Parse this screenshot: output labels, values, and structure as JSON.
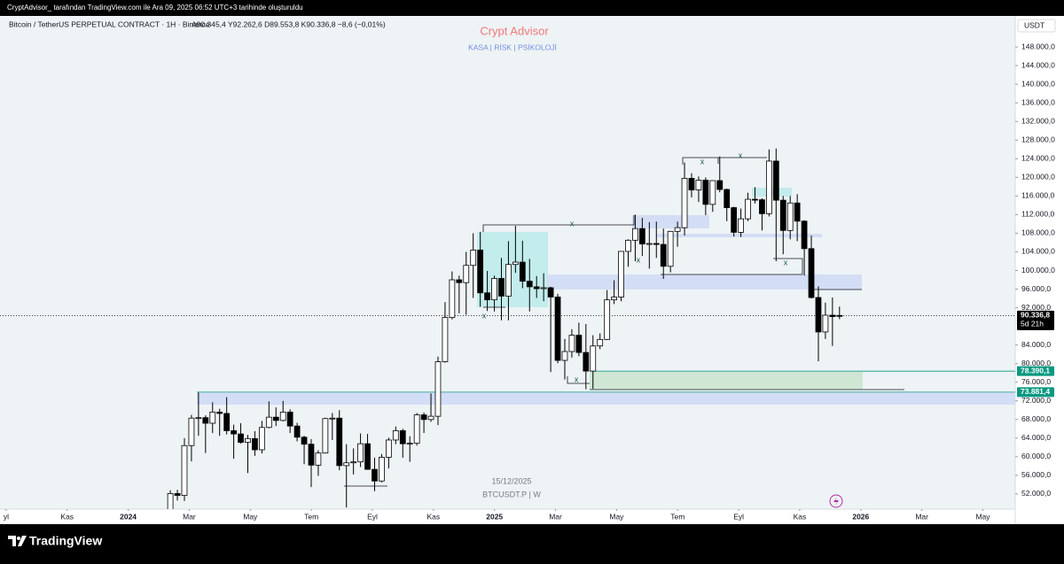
{
  "header": {
    "creator": "CryptAdvisor_ tarafından TradingView.com ile Ara 09, 2025 06:52 UTC+3 tarihinde oluşturuldu",
    "symbol": "Bitcoin / TetherUS PERPETUAL CONTRACT · 1H · Binance",
    "ohlc": "A90.345,4  Y92.262,6  D89.553,8  K90.336,8  −8,6 (−0,01%)",
    "currency": "USDT"
  },
  "watermark": {
    "title": "Crypt Advisor",
    "subtitle": "KASA  |  RİSK  |  PSİKOLOJİ"
  },
  "footer": {
    "date": "15/12/2025",
    "ticker": "BTCUSDT.P | W",
    "brand": "TradingView"
  },
  "chart_data": {
    "type": "candlestick",
    "up_color": "#ffffff",
    "down_color": "#000000",
    "ohlc": [
      [
        48300,
        52800,
        47700,
        52100
      ],
      [
        52100,
        52900,
        50600,
        51700
      ],
      [
        51700,
        64000,
        50500,
        62400
      ],
      [
        62400,
        69000,
        59000,
        68300
      ],
      [
        68300,
        73800,
        64500,
        68400
      ],
      [
        68400,
        68900,
        60800,
        67200
      ],
      [
        67200,
        71700,
        65100,
        69600
      ],
      [
        69600,
        70300,
        64500,
        69300
      ],
      [
        69300,
        72800,
        64800,
        65600
      ],
      [
        65600,
        66900,
        59600,
        64900
      ],
      [
        64900,
        67200,
        62800,
        63100
      ],
      [
        63100,
        64700,
        56500,
        63900
      ],
      [
        63900,
        65500,
        60200,
        61500
      ],
      [
        61500,
        67700,
        60700,
        66300
      ],
      [
        66300,
        71900,
        66100,
        68500
      ],
      [
        68500,
        70600,
        66600,
        67800
      ],
      [
        67800,
        72000,
        67600,
        69600
      ],
      [
        69600,
        70200,
        65100,
        66600
      ],
      [
        66600,
        67300,
        63300,
        64200
      ],
      [
        64200,
        64500,
        58400,
        62700
      ],
      [
        62700,
        63800,
        53500,
        58200
      ],
      [
        58200,
        61400,
        55900,
        60800
      ],
      [
        60800,
        68400,
        60700,
        68200
      ],
      [
        68200,
        69400,
        63600,
        68300
      ],
      [
        68300,
        70000,
        57100,
        58100
      ],
      [
        58100,
        62700,
        49100,
        58700
      ],
      [
        58700,
        61800,
        56200,
        58900
      ],
      [
        58900,
        65000,
        57800,
        62800
      ],
      [
        62800,
        64900,
        57200,
        57300
      ],
      [
        57300,
        59800,
        52600,
        54800
      ],
      [
        54800,
        60600,
        54500,
        59900
      ],
      [
        59900,
        64100,
        57500,
        63600
      ],
      [
        63600,
        66500,
        62700,
        65600
      ],
      [
        65600,
        66000,
        59800,
        62800
      ],
      [
        62800,
        64400,
        58900,
        62900
      ],
      [
        62900,
        69400,
        62400,
        69000
      ],
      [
        69000,
        69500,
        65100,
        68000
      ],
      [
        68000,
        73600,
        67500,
        68700
      ],
      [
        68700,
        81500,
        66800,
        80400
      ],
      [
        80400,
        93200,
        80200,
        89900
      ],
      [
        89900,
        99800,
        89500,
        98000
      ],
      [
        98000,
        98900,
        90800,
        97400
      ],
      [
        97400,
        104000,
        90500,
        101100
      ],
      [
        101100,
        108000,
        94100,
        104400
      ],
      [
        104400,
        108300,
        92200,
        95200
      ],
      [
        95200,
        99900,
        91300,
        93700
      ],
      [
        93700,
        98900,
        91200,
        98300
      ],
      [
        98300,
        102700,
        89300,
        94500
      ],
      [
        94500,
        106300,
        89300,
        101300
      ],
      [
        101300,
        109600,
        99500,
        101800
      ],
      [
        101800,
        106400,
        96200,
        97700
      ],
      [
        97700,
        102500,
        91200,
        96500
      ],
      [
        96500,
        98800,
        94100,
        96100
      ],
      [
        96100,
        99400,
        93400,
        96300
      ],
      [
        96300,
        96500,
        78200,
        94300
      ],
      [
        94300,
        95000,
        80100,
        80700
      ],
      [
        80700,
        85300,
        76600,
        82600
      ],
      [
        82600,
        87400,
        81300,
        86100
      ],
      [
        86100,
        88800,
        81600,
        82400
      ],
      [
        82400,
        88500,
        74500,
        78400
      ],
      [
        78400,
        86100,
        74600,
        83800
      ],
      [
        83800,
        86500,
        83100,
        85200
      ],
      [
        85200,
        95800,
        85100,
        93700
      ],
      [
        93700,
        97900,
        92800,
        94300
      ],
      [
        94300,
        104100,
        93400,
        104100
      ],
      [
        104100,
        106700,
        100800,
        106500
      ],
      [
        106500,
        112000,
        102000,
        109000
      ],
      [
        109000,
        111300,
        103100,
        105700
      ],
      [
        105700,
        110400,
        100400,
        105800
      ],
      [
        105800,
        110500,
        102700,
        105600
      ],
      [
        105600,
        109000,
        98200,
        100900
      ],
      [
        100900,
        108500,
        99600,
        108400
      ],
      [
        108400,
        110500,
        105100,
        109200
      ],
      [
        109200,
        123200,
        107500,
        119800
      ],
      [
        119800,
        120900,
        115700,
        117300
      ],
      [
        117300,
        120200,
        114700,
        119400
      ],
      [
        119400,
        120000,
        111900,
        114200
      ],
      [
        114200,
        119300,
        112600,
        119300
      ],
      [
        119300,
        124500,
        116800,
        117400
      ],
      [
        117400,
        117600,
        110600,
        113500
      ],
      [
        113500,
        113700,
        107300,
        108200
      ],
      [
        108200,
        113300,
        107200,
        111100
      ],
      [
        111100,
        116700,
        110600,
        115300
      ],
      [
        115300,
        117900,
        114400,
        115200
      ],
      [
        115200,
        115500,
        108600,
        112200
      ],
      [
        112200,
        126000,
        111600,
        123500
      ],
      [
        123500,
        126200,
        102000,
        115100
      ],
      [
        115100,
        116000,
        103500,
        108600
      ],
      [
        108600,
        116000,
        106700,
        114500
      ],
      [
        114500,
        116400,
        106300,
        110600
      ],
      [
        110600,
        110800,
        98900,
        104700
      ],
      [
        104700,
        107500,
        94000,
        94200
      ],
      [
        94200,
        96600,
        80500,
        86800
      ],
      [
        86800,
        93100,
        85300,
        90400
      ],
      [
        90400,
        94200,
        83800,
        90100
      ],
      [
        90345.4,
        92262.6,
        89553.8,
        90336.8
      ]
    ],
    "ylim": [
      48760,
      154670
    ],
    "yticks": [
      {
        "value": 52000,
        "label": "52.000,0"
      },
      {
        "value": 56000,
        "label": "56.000,0"
      },
      {
        "value": 60000,
        "label": "60.000,0"
      },
      {
        "value": 64000,
        "label": "64.000,0"
      },
      {
        "value": 68000,
        "label": "68.000,0"
      },
      {
        "value": 72000,
        "label": "72.000,0"
      },
      {
        "value": 76000,
        "label": "76.000,0"
      },
      {
        "value": 80000,
        "label": "80.000,0"
      },
      {
        "value": 84000,
        "label": "84.000,0"
      },
      {
        "value": 92000,
        "label": "92.000,0"
      },
      {
        "value": 96000,
        "label": "96.000,0"
      },
      {
        "value": 100000,
        "label": "100.000,0"
      },
      {
        "value": 104000,
        "label": "104.000,0"
      },
      {
        "value": 108000,
        "label": "108.000,0"
      },
      {
        "value": 112000,
        "label": "112.000,0"
      },
      {
        "value": 116000,
        "label": "116.000,0"
      },
      {
        "value": 120000,
        "label": "120.000,0"
      },
      {
        "value": 124000,
        "label": "124.000,0"
      },
      {
        "value": 128000,
        "label": "128.000,0"
      },
      {
        "value": 132000,
        "label": "132.000,0"
      },
      {
        "value": 136000,
        "label": "136.000,0"
      },
      {
        "value": 140000,
        "label": "140.000,0"
      },
      {
        "value": 144000,
        "label": "144.000,0"
      },
      {
        "value": 148000,
        "label": "148.000,0"
      }
    ],
    "xlim": [
      -0.2,
      33.06
    ],
    "xticks": [
      {
        "value": 0,
        "label": "yl"
      },
      {
        "value": 2,
        "label": "Kas"
      },
      {
        "value": 4,
        "label": "2024"
      },
      {
        "value": 6,
        "label": "Mar"
      },
      {
        "value": 8,
        "label": "May"
      },
      {
        "value": 10,
        "label": "Tem"
      },
      {
        "value": 12,
        "label": "Eyl"
      },
      {
        "value": 14,
        "label": "Kas"
      },
      {
        "value": 16,
        "label": "2025"
      },
      {
        "value": 18,
        "label": "Mar"
      },
      {
        "value": 20,
        "label": "May"
      },
      {
        "value": 22,
        "label": "Tem"
      },
      {
        "value": 24,
        "label": "Eyl"
      },
      {
        "value": 26,
        "label": "Kas"
      },
      {
        "value": 28,
        "label": "2026"
      },
      {
        "value": 30,
        "label": "Mar"
      },
      {
        "value": 32,
        "label": "May"
      }
    ],
    "price_labels": [
      {
        "value": 90336.8,
        "label": "90.336,8",
        "countdown": "5d 21h",
        "color": "#000000"
      },
      {
        "value": 78390.1,
        "label": "78.390,1",
        "color": "#089981"
      },
      {
        "value": 73881.4,
        "label": "73.881,4",
        "color": "#089981"
      }
    ],
    "annotations": [
      "x",
      "x",
      "x",
      "x",
      "x",
      "x",
      "x"
    ]
  }
}
